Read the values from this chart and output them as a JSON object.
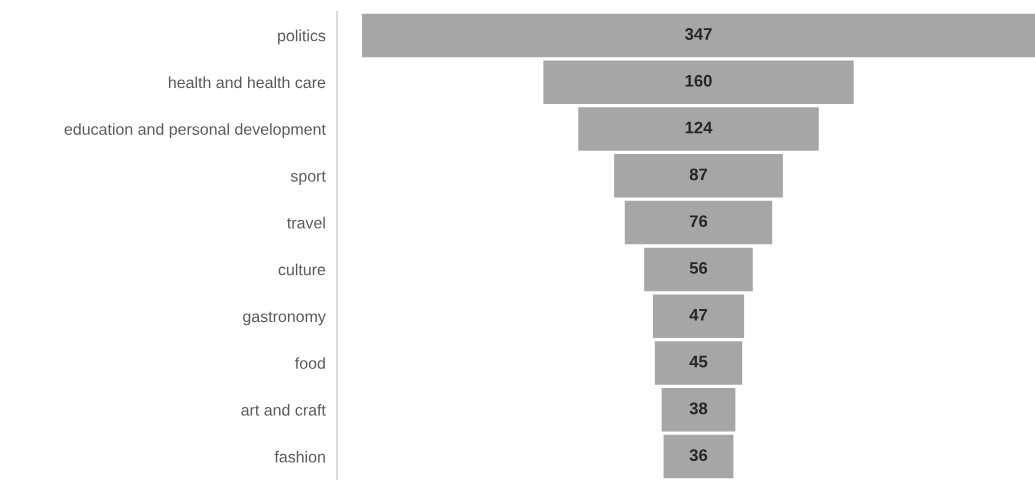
{
  "chart_data": {
    "type": "other",
    "categories": [
      "politics",
      "health and health care",
      "education and personal development",
      "sport",
      "travel",
      "culture",
      "gastronomy",
      "food",
      "art and craft",
      "fashion"
    ],
    "values": [
      347,
      160,
      124,
      87,
      76,
      56,
      47,
      45,
      38,
      36
    ],
    "color": "#a6a6a6",
    "data_labels": true
  }
}
